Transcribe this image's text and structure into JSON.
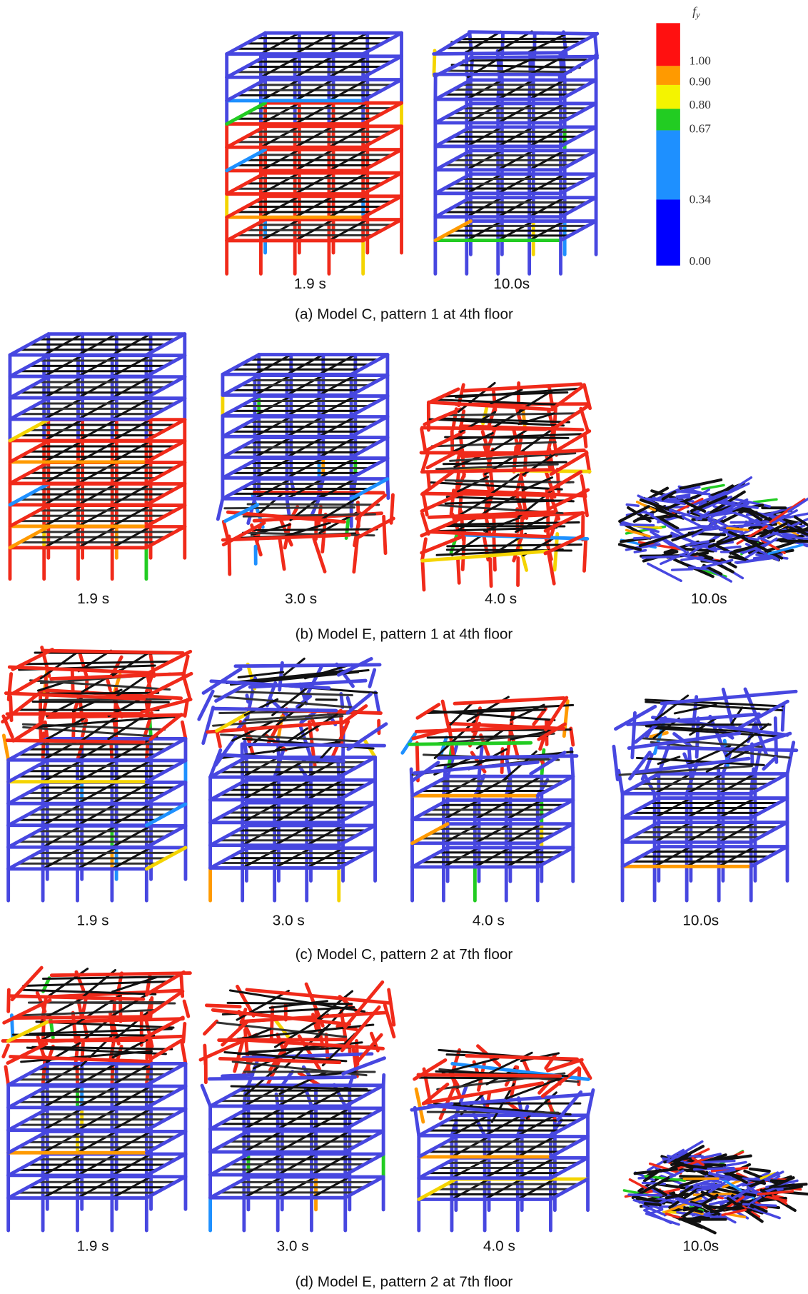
{
  "legend": {
    "symbol": "f",
    "subscript": "y",
    "labels": [
      "1.00",
      "0.90",
      "0.80",
      "0.67",
      "0.34",
      "0.00"
    ]
  },
  "panels": [
    {
      "caption": "(a) Model C, pattern 1 at 4th floor",
      "frames": [
        {
          "time": "1.9 s"
        },
        {
          "time": "10.0s"
        }
      ]
    },
    {
      "caption": "(b) Model E, pattern 1 at 4th floor",
      "frames": [
        {
          "time": "1.9 s"
        },
        {
          "time": "3.0 s"
        },
        {
          "time": "4.0 s"
        },
        {
          "time": "10.0s"
        }
      ]
    },
    {
      "caption": "(c) Model C, pattern 2 at 7th floor",
      "frames": [
        {
          "time": "1.9 s"
        },
        {
          "time": "3.0 s"
        },
        {
          "time": "4.0 s"
        },
        {
          "time": "10.0s"
        }
      ]
    },
    {
      "caption": "(d) Model E, pattern 2 at 7th floor",
      "frames": [
        {
          "time": "1.9 s"
        },
        {
          "time": "3.0 s"
        },
        {
          "time": "4.0 s"
        },
        {
          "time": "10.0s"
        }
      ]
    }
  ]
}
